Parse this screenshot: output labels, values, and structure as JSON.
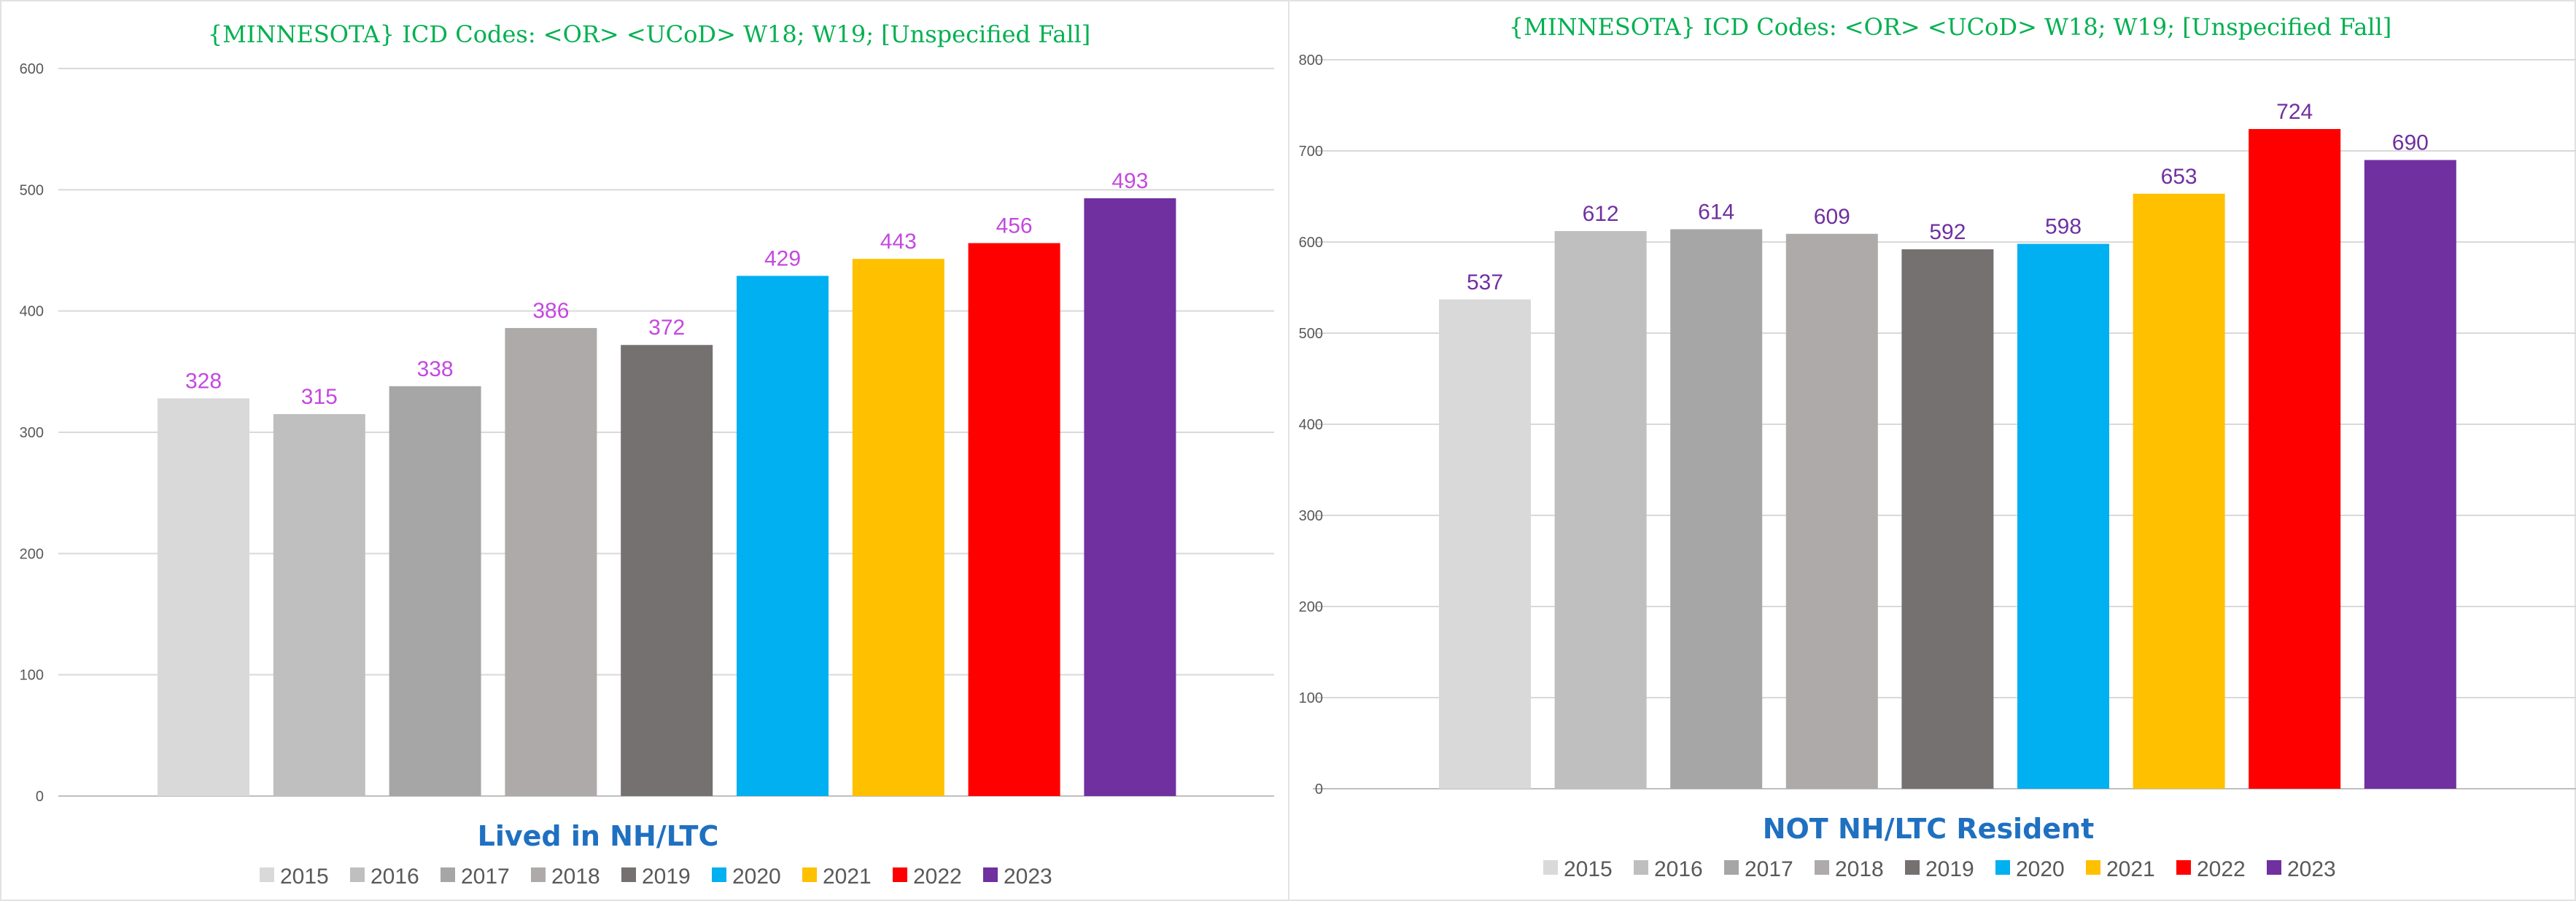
{
  "chart_data": [
    {
      "type": "bar",
      "title": "{MINNESOTA}  ICD Codes: <OR> <UCoD> W18; W19;  [Unspecified  Fall]",
      "xlabel": "Lived in NH/LTC",
      "ylabel": "",
      "categories": [
        "2015",
        "2016",
        "2017",
        "2018",
        "2019",
        "2020",
        "2021",
        "2022",
        "2023"
      ],
      "values": [
        328,
        315,
        338,
        386,
        372,
        429,
        443,
        456,
        493
      ],
      "colors": [
        "#d9d9d9",
        "#bfbfbf",
        "#a6a6a6",
        "#aeaaaa",
        "#767171",
        "#00b0f0",
        "#ffc000",
        "#ff0000",
        "#7030a0"
      ],
      "ylim": [
        0,
        600
      ],
      "yticks": [
        "0",
        "100",
        "200",
        "300",
        "400",
        "500",
        "600"
      ],
      "label_color": "#c448e0",
      "grid": true,
      "legend": "bottom"
    },
    {
      "type": "bar",
      "title": "{MINNESOTA}  ICD Codes: <OR> <UCoD> W18; W19;  [Unspecified  Fall]",
      "xlabel": "NOT NH/LTC Resident",
      "ylabel": "",
      "categories": [
        "2015",
        "2016",
        "2017",
        "2018",
        "2019",
        "2020",
        "2021",
        "2022",
        "2023"
      ],
      "values": [
        537,
        612,
        614,
        609,
        592,
        598,
        653,
        724,
        690
      ],
      "colors": [
        "#d9d9d9",
        "#bfbfbf",
        "#a6a6a6",
        "#aeaaaa",
        "#767171",
        "#00b0f0",
        "#ffc000",
        "#ff0000",
        "#7030a0"
      ],
      "ylim": [
        0,
        800
      ],
      "yticks": [
        "0",
        "100",
        "200",
        "300",
        "400",
        "500",
        "600",
        "700",
        "800"
      ],
      "label_color": "#7030a0",
      "grid": true,
      "legend": "bottom"
    }
  ]
}
